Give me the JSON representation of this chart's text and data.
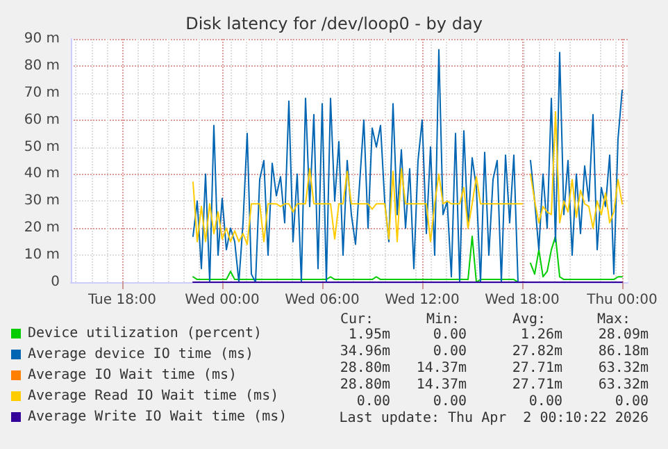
{
  "chart_data": {
    "type": "line",
    "title": "Disk latency for /dev/loop0 - by day",
    "x": [
      "2026-03-31T22:15",
      "2026-03-31T22:30",
      "2026-03-31T22:45",
      "2026-03-31T23:00",
      "2026-03-31T23:15",
      "2026-03-31T23:30",
      "2026-03-31T23:45",
      "2026-04-01T00:00",
      "2026-04-01T00:15",
      "2026-04-01T00:30",
      "2026-04-01T00:45",
      "2026-04-01T01:00",
      "2026-04-01T01:15",
      "2026-04-01T01:30",
      "2026-04-01T01:45",
      "2026-04-01T02:00",
      "2026-04-01T02:15",
      "2026-04-01T02:30",
      "2026-04-01T02:45",
      "2026-04-01T03:00",
      "2026-04-01T03:15",
      "2026-04-01T03:30",
      "2026-04-01T03:45",
      "2026-04-01T04:00",
      "2026-04-01T04:15",
      "2026-04-01T04:30",
      "2026-04-01T04:45",
      "2026-04-01T05:00",
      "2026-04-01T05:15",
      "2026-04-01T05:30",
      "2026-04-01T05:45",
      "2026-04-01T06:00",
      "2026-04-01T06:15",
      "2026-04-01T06:30",
      "2026-04-01T06:45",
      "2026-04-01T07:00",
      "2026-04-01T07:15",
      "2026-04-01T07:30",
      "2026-04-01T07:45",
      "2026-04-01T08:00",
      "2026-04-01T08:15",
      "2026-04-01T08:30",
      "2026-04-01T08:45",
      "2026-04-01T09:00",
      "2026-04-01T09:15",
      "2026-04-01T09:30",
      "2026-04-01T09:45",
      "2026-04-01T10:00",
      "2026-04-01T10:15",
      "2026-04-01T10:30",
      "2026-04-01T10:45",
      "2026-04-01T11:00",
      "2026-04-01T11:15",
      "2026-04-01T11:30",
      "2026-04-01T11:45",
      "2026-04-01T12:00",
      "2026-04-01T12:15",
      "2026-04-01T12:30",
      "2026-04-01T12:45",
      "2026-04-01T13:00",
      "2026-04-01T13:15",
      "2026-04-01T13:30",
      "2026-04-01T13:45",
      "2026-04-01T14:00",
      "2026-04-01T14:15",
      "2026-04-01T14:30",
      "2026-04-01T14:45",
      "2026-04-01T15:00",
      "2026-04-01T15:15",
      "2026-04-01T15:30",
      "2026-04-01T15:45",
      "2026-04-01T16:00",
      "2026-04-01T16:15",
      "2026-04-01T16:30",
      "2026-04-01T16:45",
      "2026-04-01T17:00",
      "2026-04-01T17:15",
      "2026-04-01T17:30",
      "2026-04-01T17:45",
      "2026-04-01T18:00",
      "2026-04-01T18:15",
      "2026-04-01T18:30",
      "2026-04-01T18:45",
      "2026-04-01T19:00",
      "2026-04-01T19:15",
      "2026-04-01T19:30",
      "2026-04-01T19:45",
      "2026-04-01T20:00",
      "2026-04-01T20:15",
      "2026-04-01T20:30",
      "2026-04-01T20:45",
      "2026-04-01T21:00",
      "2026-04-01T21:15",
      "2026-04-01T21:30",
      "2026-04-01T21:45",
      "2026-04-01T22:00",
      "2026-04-01T22:15",
      "2026-04-01T22:30",
      "2026-04-01T22:45",
      "2026-04-01T23:00",
      "2026-04-01T23:15",
      "2026-04-01T23:30",
      "2026-04-01T23:45",
      "2026-04-02T00:00"
    ],
    "series": [
      {
        "name": "Device utilization (percent)",
        "color": "#00cc00",
        "values": [
          2,
          1,
          1,
          1,
          1,
          1,
          1,
          1,
          1,
          4,
          1,
          1,
          1,
          1,
          1,
          1,
          1,
          1,
          1,
          1,
          1,
          1,
          1,
          1,
          1,
          1,
          1,
          1,
          1,
          1,
          1,
          1,
          1,
          2,
          1,
          1,
          1,
          1,
          1,
          1,
          1,
          1,
          1,
          1,
          2,
          1,
          1,
          1,
          1,
          1,
          1,
          1,
          1,
          1,
          1,
          1,
          1,
          1,
          1,
          1,
          1,
          1,
          1,
          1,
          1,
          1,
          1,
          17,
          0,
          1,
          1,
          1,
          1,
          1,
          1,
          1,
          1,
          1,
          0,
          0,
          null,
          7,
          3,
          12,
          2,
          4,
          12,
          17,
          2,
          1,
          1,
          1,
          1,
          1,
          1,
          1,
          1,
          1,
          1,
          1,
          1,
          1,
          2,
          2
        ]
      },
      {
        "name": "Average device IO time (ms)",
        "color": "#0066b3",
        "values": [
          17,
          30,
          5,
          40,
          0,
          58,
          10,
          31,
          12,
          20,
          15,
          0,
          22,
          55,
          3,
          0,
          38,
          45,
          10,
          44,
          32,
          39,
          22,
          67,
          15,
          40,
          0,
          68,
          28,
          62,
          5,
          66,
          0,
          68,
          30,
          52,
          10,
          45,
          25,
          14,
          37,
          60,
          20,
          57,
          50,
          58,
          30,
          15,
          66,
          25,
          49,
          20,
          42,
          5,
          45,
          60,
          18,
          50,
          10,
          86,
          25,
          30,
          2,
          55,
          0,
          56,
          20,
          46,
          35,
          0,
          48,
          10,
          38,
          45,
          0,
          47,
          22,
          47,
          0,
          0,
          null,
          45,
          30,
          12,
          40,
          20,
          68,
          15,
          85,
          25,
          45,
          10,
          40,
          18,
          43,
          30,
          62,
          12,
          35,
          28,
          47,
          3,
          53,
          71
        ]
      },
      {
        "name": "Average IO Wait time (ms)",
        "color": "#ff8000",
        "values": [
          null,
          null,
          null,
          null,
          null,
          null,
          null,
          null,
          null,
          null,
          null,
          null,
          null,
          null,
          null,
          null,
          null,
          null,
          null,
          null,
          null,
          null,
          null,
          null,
          null,
          null,
          null,
          null,
          null,
          null,
          null,
          null,
          null,
          null,
          null,
          null,
          null,
          null,
          null,
          null,
          null,
          null,
          null,
          null,
          null,
          null,
          null,
          null,
          null,
          null,
          null,
          null,
          null,
          null,
          null,
          null,
          null,
          null,
          null,
          null,
          null,
          null,
          null,
          null,
          null,
          null,
          null,
          null,
          null,
          null,
          null,
          null,
          null,
          null,
          null,
          null,
          null,
          null,
          null,
          null,
          null,
          null,
          null,
          null,
          null,
          null,
          null,
          null,
          null,
          null,
          null,
          null,
          null,
          null,
          null,
          null,
          null,
          null,
          null,
          null,
          null,
          null,
          null,
          null
        ]
      },
      {
        "name": "Average Read IO Wait time (ms)",
        "color": "#ffcc00",
        "values": [
          37,
          15,
          28,
          15,
          29,
          18,
          26,
          16,
          20,
          15,
          19,
          15,
          18,
          14,
          29,
          29,
          29,
          15,
          29,
          29,
          29,
          28,
          29,
          29,
          26,
          29,
          29,
          29,
          42,
          29,
          29,
          29,
          29,
          29,
          16,
          29,
          29,
          41,
          29,
          29,
          29,
          29,
          29,
          27,
          29,
          29,
          29,
          16,
          41,
          15,
          42,
          29,
          29,
          29,
          29,
          29,
          29,
          15,
          29,
          40,
          29,
          30,
          29,
          29,
          29,
          35,
          20,
          29,
          39,
          29,
          29,
          29,
          29,
          29,
          29,
          29,
          29,
          29,
          29,
          29,
          null,
          40,
          30,
          22,
          28,
          26,
          25,
          63,
          22,
          30,
          26,
          38,
          24,
          34,
          29,
          28,
          20,
          30,
          25,
          33,
          22,
          26,
          38,
          29
        ]
      },
      {
        "name": "Average Write IO Wait time (ms)",
        "color": "#330099",
        "values": [
          0,
          0,
          0,
          0,
          0,
          0,
          0,
          0,
          0,
          0,
          0,
          0,
          0,
          0,
          0,
          0,
          0,
          0,
          0,
          0,
          0,
          0,
          0,
          0,
          0,
          0,
          0,
          0,
          0,
          0,
          0,
          0,
          0,
          0,
          0,
          0,
          0,
          0,
          0,
          0,
          0,
          0,
          0,
          0,
          0,
          0,
          0,
          0,
          0,
          0,
          0,
          0,
          0,
          0,
          0,
          0,
          0,
          0,
          0,
          0,
          0,
          0,
          0,
          0,
          0,
          0,
          0,
          0,
          0,
          0,
          0,
          0,
          0,
          0,
          0,
          0,
          0,
          0,
          0,
          0,
          0,
          0,
          0,
          0,
          0,
          0,
          0,
          0,
          0,
          0,
          0,
          0,
          0,
          0,
          0,
          0,
          0,
          0,
          0,
          0,
          0,
          0,
          0,
          0
        ]
      }
    ],
    "xlim": [
      "2026-03-31T14:55",
      "2026-04-02T00:20"
    ],
    "xticks": [
      {
        "value": "2026-03-31T18:00",
        "label": "Tue 18:00"
      },
      {
        "value": "2026-04-01T00:00",
        "label": "Wed 00:00"
      },
      {
        "value": "2026-04-01T06:00",
        "label": "Wed 06:00"
      },
      {
        "value": "2026-04-01T12:00",
        "label": "Wed 12:00"
      },
      {
        "value": "2026-04-01T18:00",
        "label": "Wed 18:00"
      },
      {
        "value": "2026-04-02T00:00",
        "label": "Thu 00:00"
      }
    ],
    "ylim": [
      0,
      90
    ],
    "yticks": [
      0,
      {
        "value": 10,
        "label": "10 m"
      },
      {
        "value": 20,
        "label": "20 m"
      },
      {
        "value": 30,
        "label": "30 m"
      },
      {
        "value": 40,
        "label": "40 m"
      },
      {
        "value": 50,
        "label": "50 m"
      },
      {
        "value": 60,
        "label": "60 m"
      },
      {
        "value": 70,
        "label": "70 m"
      },
      {
        "value": 80,
        "label": "80 m"
      },
      {
        "value": 90,
        "label": "90 m"
      }
    ],
    "grid": true,
    "legend": "bottom left",
    "marker": "none",
    "line_style": "solid",
    "annotations": [
      "Cur:",
      "Min:",
      "Avg:",
      "Max:",
      "1.95m",
      "0.00",
      "1.26m",
      "28.09m",
      "34.96m",
      "0.00",
      "27.82m",
      "86.18m",
      "28.80m",
      "14.37m",
      "27.71m",
      "63.32m",
      "28.80m",
      "14.37m",
      "27.71m",
      "63.32m",
      "0.00",
      "0.00",
      "0.00",
      "0.00",
      "Last update: Thu Apr  2 00:10:22 2026"
    ]
  }
}
